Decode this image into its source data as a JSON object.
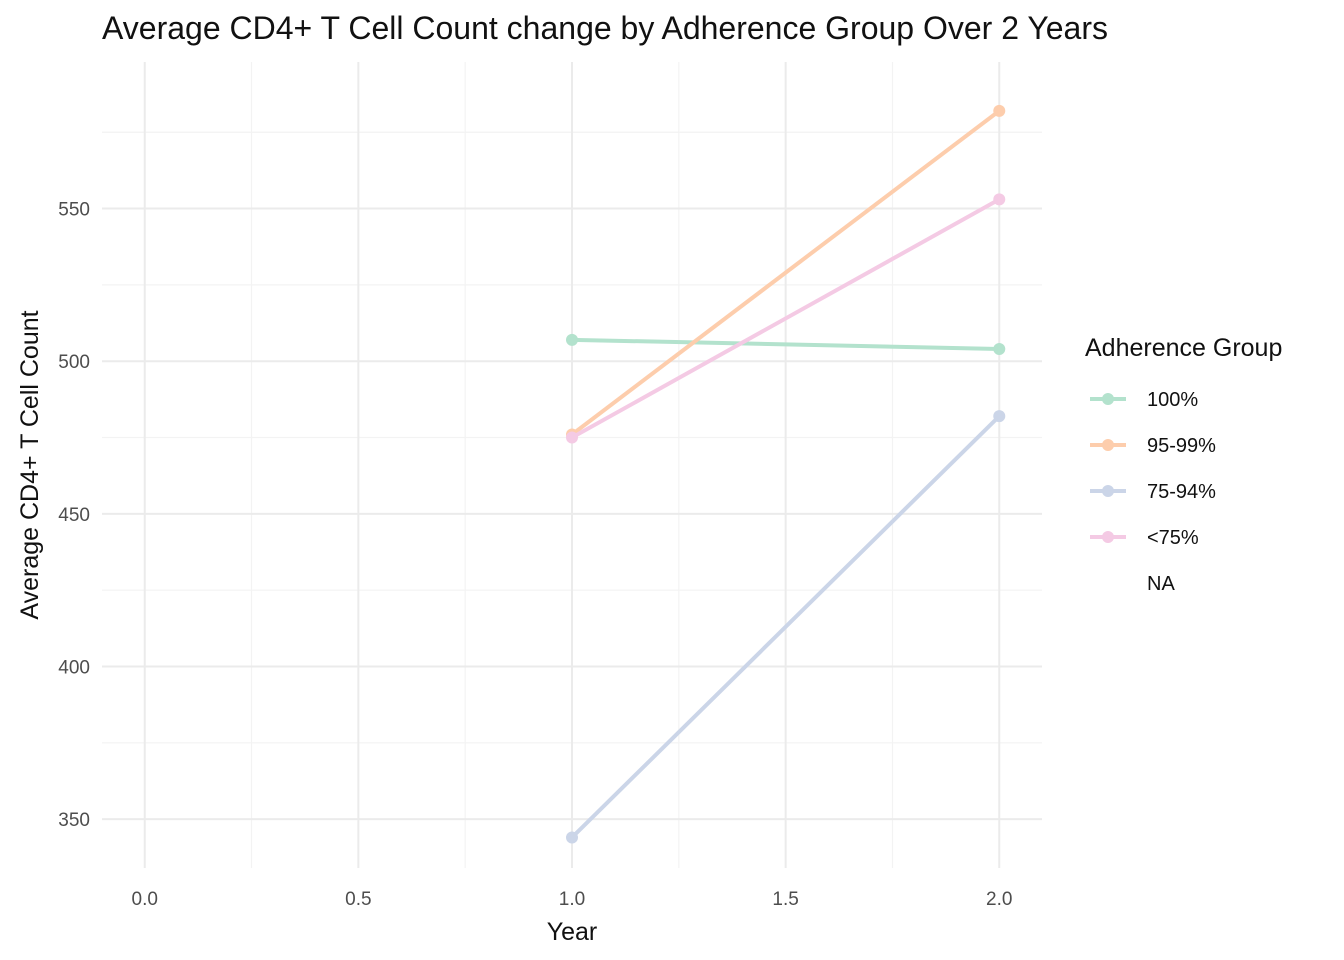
{
  "chart_data": {
    "type": "line",
    "title": "Average CD4+ T Cell Count change by Adherence Group Over 2 Years",
    "xlabel": "Year",
    "ylabel": "Average CD4+ T Cell Count",
    "xlim": [
      -0.1,
      2.1
    ],
    "ylim": [
      334,
      598
    ],
    "x_ticks": [
      0.0,
      0.5,
      1.0,
      1.5,
      2.0
    ],
    "x_tick_labels": [
      "0.0",
      "0.5",
      "1.0",
      "1.5",
      "2.0"
    ],
    "y_ticks": [
      350,
      400,
      450,
      500,
      550
    ],
    "y_tick_labels": [
      "350",
      "400",
      "450",
      "500",
      "550"
    ],
    "grid": true,
    "legend": {
      "title": "Adherence Group",
      "placement": "right",
      "entries": [
        "100%",
        "95-99%",
        "75-94%",
        "<75%",
        "NA"
      ]
    },
    "series": [
      {
        "name": "100%",
        "color": "#b3e2cd",
        "x": [
          1,
          2
        ],
        "y": [
          507,
          504
        ]
      },
      {
        "name": "95-99%",
        "color": "#fdcdac",
        "x": [
          1,
          2
        ],
        "y": [
          476,
          582
        ]
      },
      {
        "name": "75-94%",
        "color": "#cbd5e8",
        "x": [
          1,
          2
        ],
        "y": [
          344,
          482
        ]
      },
      {
        "name": "<75%",
        "color": "#f4cae4",
        "x": [
          1,
          2
        ],
        "y": [
          475,
          553
        ]
      },
      {
        "name": "NA",
        "color": "",
        "x": [],
        "y": []
      }
    ]
  }
}
